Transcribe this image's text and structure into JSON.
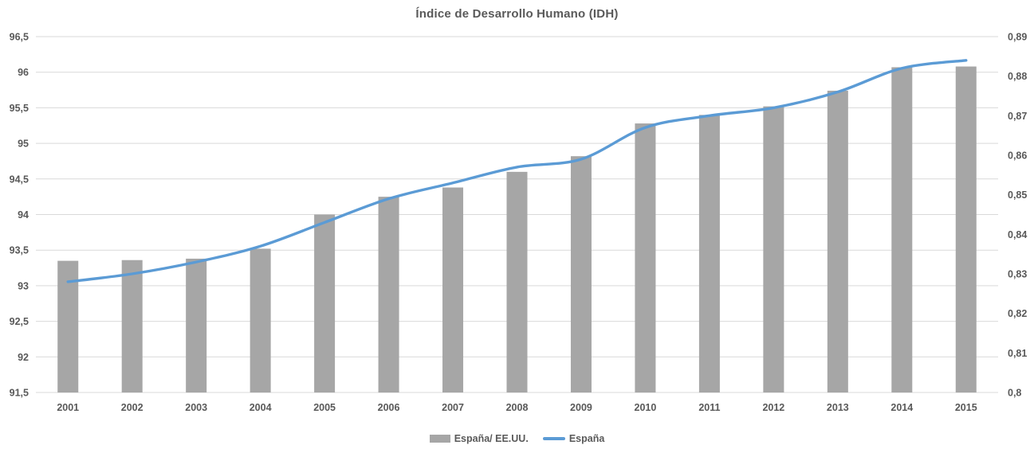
{
  "chart_data": {
    "type": "combo",
    "title": "Índice de Desarrollo Humano (IDH)",
    "categories": [
      "2001",
      "2002",
      "2003",
      "2004",
      "2005",
      "2006",
      "2007",
      "2008",
      "2009",
      "2010",
      "2011",
      "2012",
      "2013",
      "2014",
      "2015"
    ],
    "series": [
      {
        "name": "España/ EE.UU.",
        "type": "bar",
        "axis": "left",
        "color": "#a6a6a6",
        "values": [
          93.35,
          93.36,
          93.38,
          93.52,
          94.0,
          94.25,
          94.38,
          94.6,
          94.82,
          95.28,
          95.4,
          95.52,
          95.74,
          96.07,
          96.08
        ]
      },
      {
        "name": "España",
        "type": "line",
        "axis": "right",
        "color": "#5b9bd5",
        "values": [
          0.828,
          0.83,
          0.833,
          0.837,
          0.843,
          0.849,
          0.853,
          0.857,
          0.859,
          0.867,
          0.87,
          0.872,
          0.876,
          0.882,
          0.884
        ]
      }
    ],
    "left_axis": {
      "min": 91.5,
      "max": 96.5,
      "step": 0.5,
      "tick_labels_top_to_bottom": [
        "96,5",
        "96",
        "95,5",
        "95",
        "94,5",
        "94",
        "93,5",
        "93",
        "92,5",
        "92",
        "91,5"
      ]
    },
    "right_axis": {
      "min": 0.8,
      "max": 0.89,
      "step": 0.01,
      "tick_labels_top_to_bottom": [
        "0,89",
        "0,88",
        "0,87",
        "0,86",
        "0,85",
        "0,84",
        "0,83",
        "0,82",
        "0,81",
        "0,8"
      ]
    },
    "grid": true,
    "legend_position": "bottom",
    "colors": {
      "grid": "#d9d9d9",
      "text": "#595959",
      "background": "#ffffff"
    }
  }
}
